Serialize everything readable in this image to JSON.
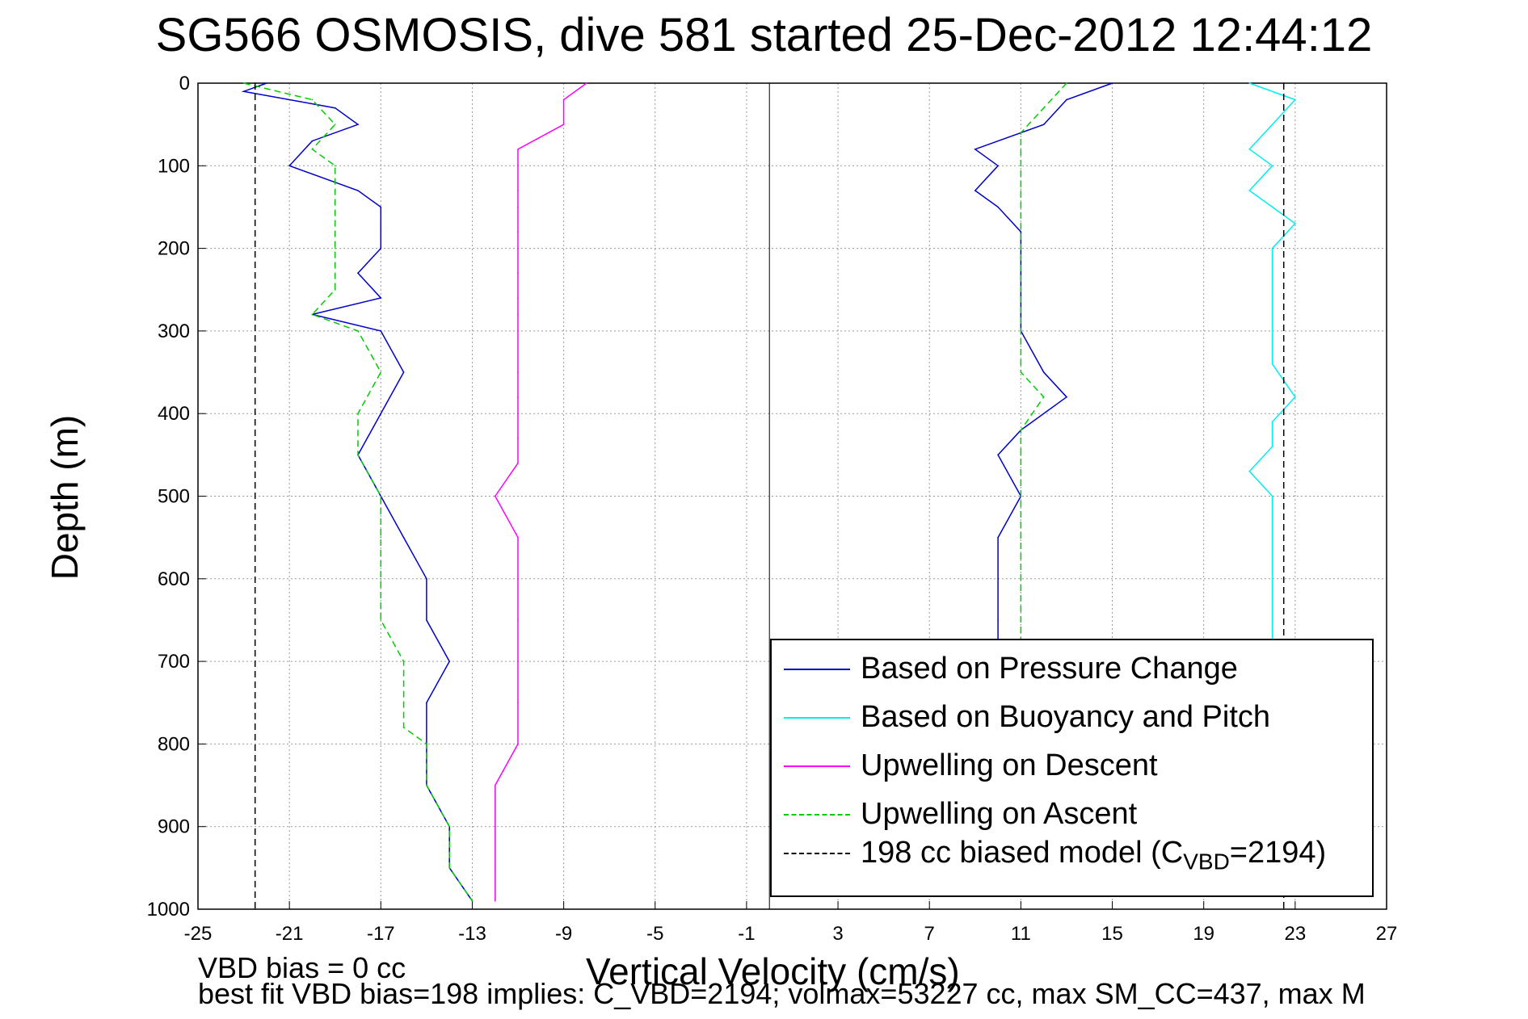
{
  "title": "SG566 OSMOSIS, dive 581 started 25-Dec-2012 12:44:12",
  "chart_data": {
    "type": "line",
    "xlabel": "Vertical Velocity (cm/s)",
    "ylabel": "Depth (m)",
    "xlim": [
      -25,
      27
    ],
    "ylim": [
      0,
      1000
    ],
    "y_reversed": true,
    "grid": true,
    "x_ticks": [
      -25,
      -21,
      -17,
      -13,
      -9,
      -5,
      -1,
      3,
      7,
      11,
      15,
      19,
      23,
      27
    ],
    "y_ticks": [
      0,
      100,
      200,
      300,
      400,
      500,
      600,
      700,
      800,
      900,
      1000
    ],
    "legend_position": "bottom-right",
    "series": [
      {
        "name": "Based on Pressure Change",
        "color": "#0000cc",
        "style": "solid",
        "depth": [
          0,
          10,
          30,
          50,
          70,
          100,
          130,
          150,
          180,
          200,
          230,
          260,
          280,
          300,
          350,
          400,
          450,
          500,
          550,
          600,
          650,
          700,
          750,
          800,
          850,
          900,
          950,
          990,
          0,
          20,
          50,
          80,
          100,
          130,
          150,
          180,
          200,
          230,
          260,
          280,
          300,
          350,
          380,
          420,
          450,
          500,
          550,
          600,
          650,
          680
        ],
        "values": [
          -22,
          -23,
          -19,
          -18,
          -20,
          -21,
          -18,
          -17,
          -17,
          -17,
          -18,
          -17,
          -20,
          -17,
          -16,
          -17,
          -18,
          -17,
          -16,
          -15,
          -15,
          -14,
          -15,
          -15,
          -15,
          -14,
          -14,
          -13,
          15,
          13,
          12,
          9,
          10,
          9,
          10,
          11,
          11,
          11,
          11,
          11,
          11,
          12,
          13,
          11,
          10,
          11,
          10,
          10,
          10,
          10
        ]
      },
      {
        "name": "Based on Buoyancy and Pitch",
        "color": "#00eeee",
        "style": "solid",
        "depth": [
          0,
          20,
          50,
          80,
          100,
          130,
          150,
          170,
          200,
          240,
          270,
          300,
          340,
          380,
          410,
          440,
          470,
          500,
          530,
          560,
          600,
          630,
          660,
          680
        ],
        "values": [
          21,
          23,
          22,
          21,
          22,
          21,
          22,
          23,
          22,
          22,
          22,
          22,
          22,
          23,
          22,
          22,
          21,
          22,
          22,
          22,
          22,
          22,
          22,
          22
        ]
      },
      {
        "name": "Upwelling on Descent",
        "color": "#ff00ff",
        "style": "solid",
        "depth": [
          0,
          20,
          50,
          80,
          100,
          130,
          150,
          180,
          200,
          230,
          260,
          280,
          300,
          350,
          380,
          400,
          430,
          460,
          500,
          550,
          600,
          650,
          700,
          750,
          800,
          850,
          900,
          950,
          990
        ],
        "values": [
          -8,
          -9,
          -9,
          -11,
          -11,
          -11,
          -11,
          -11,
          -11,
          -11,
          -11,
          -11,
          -11,
          -11,
          -11,
          -11,
          -11,
          -11,
          -12,
          -11,
          -11,
          -11,
          -11,
          -11,
          -11,
          -12,
          -12,
          -12,
          -12
        ]
      },
      {
        "name": "Upwelling on Ascent",
        "color": "#00cc00",
        "style": "dashed",
        "depth": [
          0,
          20,
          50,
          80,
          100,
          130,
          160,
          200,
          250,
          280,
          300,
          350,
          400,
          450,
          500,
          550,
          600,
          650,
          700,
          750,
          780,
          800,
          850,
          900,
          950,
          990,
          0,
          30,
          60,
          100,
          130,
          160,
          200,
          250,
          300,
          350,
          380,
          420,
          450,
          500,
          550,
          600,
          650,
          680
        ],
        "values": [
          -23,
          -20,
          -19,
          -20,
          -19,
          -19,
          -19,
          -19,
          -19,
          -20,
          -18,
          -17,
          -18,
          -18,
          -17,
          -17,
          -17,
          -17,
          -16,
          -16,
          -16,
          -15,
          -15,
          -14,
          -14,
          -13,
          13,
          12,
          11,
          11,
          11,
          11,
          11,
          11,
          11,
          11,
          12,
          11,
          11,
          11,
          11,
          11,
          11,
          11
        ]
      },
      {
        "name": "198 cc biased model (C_VBD=2194)",
        "color": "#000000",
        "style": "dashed",
        "depth": [
          0,
          1000,
          0,
          1000
        ],
        "values": [
          -22.5,
          -22.5,
          22.5,
          22.5
        ]
      }
    ]
  },
  "legend": {
    "items": [
      {
        "label": "Based on Pressure Change",
        "color": "#0000cc",
        "style": "solid"
      },
      {
        "label": "Based on Buoyancy and Pitch",
        "color": "#00eeee",
        "style": "solid"
      },
      {
        "label": "Upwelling on Descent",
        "color": "#ff00ff",
        "style": "solid"
      },
      {
        "label": "Upwelling on Ascent",
        "color": "#00cc00",
        "style": "dashed"
      },
      {
        "label": "198 cc biased model (C",
        "sub": "VBD",
        "suffix": "=2194)",
        "color": "#000000",
        "style": "dashed"
      }
    ]
  },
  "notes": {
    "line1": "VBD bias = 0 cc",
    "line2": "best fit VBD bias=198 implies: C_VBD=2194; volmax=53227 cc, max SM_CC=437, max M"
  }
}
